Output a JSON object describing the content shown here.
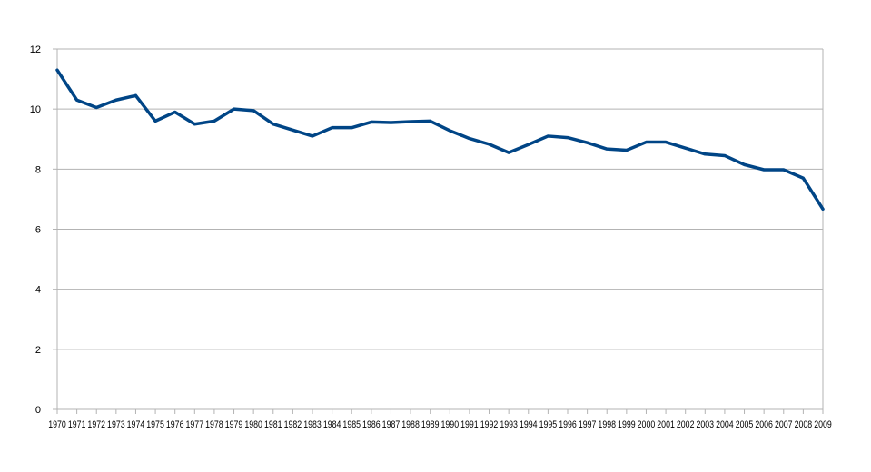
{
  "chart_data": {
    "type": "line",
    "title": "",
    "xlabel": "",
    "ylabel": "",
    "ylim": [
      0,
      12
    ],
    "yticks": [
      0,
      2,
      4,
      6,
      8,
      10,
      12
    ],
    "grid": true,
    "legend": "none",
    "x": [
      "1970",
      "1971",
      "1972",
      "1973",
      "1974",
      "1975",
      "1976",
      "1977",
      "1978",
      "1979",
      "1980",
      "1981",
      "1982",
      "1983",
      "1984",
      "1985",
      "1986",
      "1987",
      "1988",
      "1989",
      "1990",
      "1991",
      "1992",
      "1993",
      "1994",
      "1995",
      "1996",
      "1997",
      "1998",
      "1999",
      "2000",
      "2001",
      "2002",
      "2003",
      "2004",
      "2005",
      "2006",
      "2007",
      "2008",
      "2009"
    ],
    "series": [
      {
        "color": "#004586",
        "values": [
          11.3,
          10.3,
          10.05,
          10.3,
          10.45,
          9.6,
          9.9,
          9.5,
          9.6,
          10.0,
          9.95,
          9.5,
          9.3,
          9.1,
          9.38,
          9.38,
          9.57,
          9.55,
          9.58,
          9.6,
          9.28,
          9.02,
          8.83,
          8.55,
          8.82,
          9.1,
          9.05,
          8.88,
          8.67,
          8.63,
          8.9,
          8.9,
          8.7,
          8.5,
          8.45,
          8.15,
          7.98,
          7.98,
          7.7,
          6.67
        ]
      }
    ],
    "colors": {
      "grid": "#b3b3b3",
      "axis": "#b3b3b3",
      "tick_text": "#000000",
      "background": "#ffffff"
    }
  }
}
